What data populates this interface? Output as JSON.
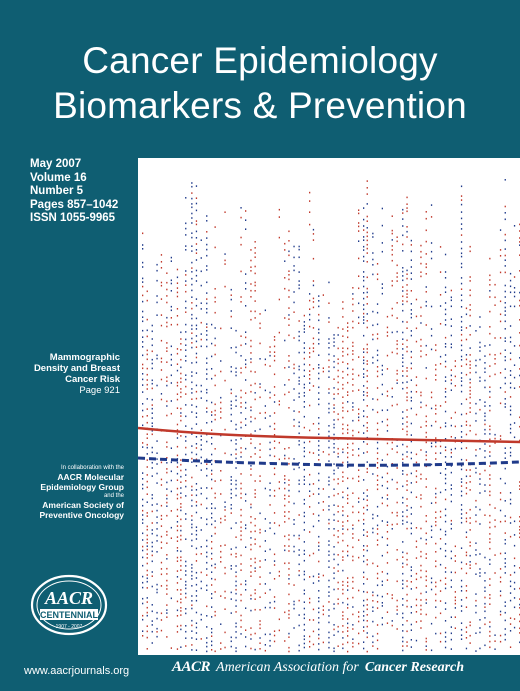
{
  "journal": {
    "title_line1": "Cancer Epidemiology",
    "title_line2": "Biomarkers & Prevention"
  },
  "issue": {
    "date": "May 2007",
    "volume": "Volume 16",
    "number": "Number 5",
    "pages": "Pages 857–1042",
    "issn": "ISSN 1055-9965"
  },
  "feature": {
    "line1": "Mammographic",
    "line2": "Density and Breast",
    "line3": "Cancer Risk",
    "page": "Page 921"
  },
  "collaboration": {
    "intro": "In collaboration with the",
    "group1_line1": "AACR Molecular",
    "group1_line2": "Epidemiology Group",
    "and": "and the",
    "group2_line1": "American Society of",
    "group2_line2": "Preventive Oncology"
  },
  "seal": {
    "logo": "AACR",
    "label": "CENTENNIAL",
    "years": "1907 - 2007"
  },
  "footer": {
    "url": "www.aacrjournals.org",
    "org_logo": "AACR",
    "org_name_plain": "American Association for",
    "org_name_bold": "Cancer Research"
  },
  "colors": {
    "background": "#0f5e72",
    "red_series": "#c0392b",
    "blue_series": "#1f3a8a"
  },
  "icons": {
    "seal": "aacr-centennial-seal-icon"
  }
}
